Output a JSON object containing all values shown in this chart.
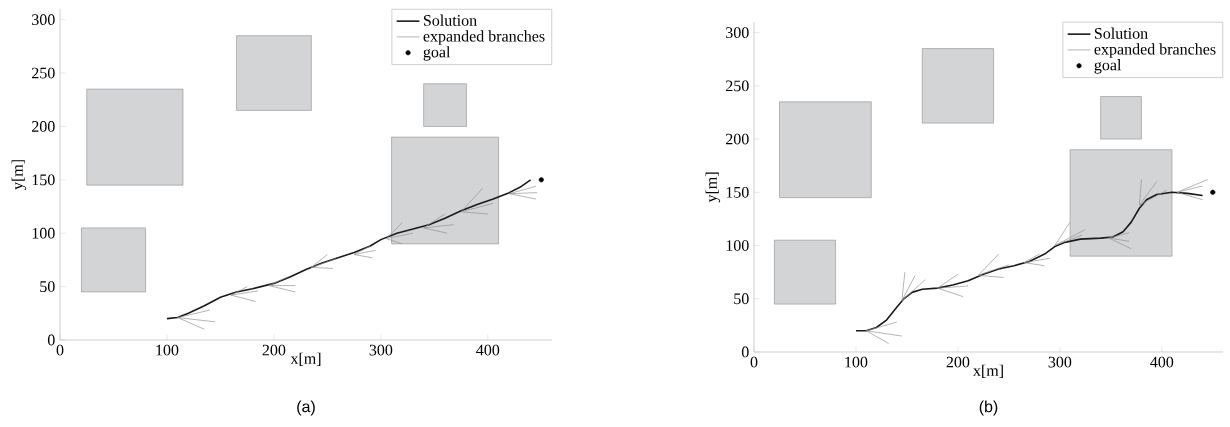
{
  "chart_data": [
    {
      "type": "line",
      "xlabel": "x[m]",
      "ylabel": "y[m]",
      "xlim": [
        0,
        460
      ],
      "ylim": [
        0,
        310
      ],
      "xticks": [
        0,
        100,
        200,
        300,
        400
      ],
      "yticks": [
        0,
        50,
        100,
        150,
        200,
        250,
        300
      ],
      "legend": "top right",
      "annotations": [
        "(a)"
      ],
      "series": [
        {
          "type": "area",
          "color": "#d3d4d6",
          "x": [
            25,
            115,
            115,
            25,
            25
          ],
          "values": [
            145,
            145,
            235,
            235,
            145
          ]
        },
        {
          "type": "area",
          "color": "#d3d4d6",
          "x": [
            20,
            80,
            80,
            20,
            20
          ],
          "values": [
            45,
            45,
            105,
            105,
            45
          ]
        },
        {
          "type": "area",
          "color": "#d3d4d6",
          "x": [
            165,
            235,
            235,
            165,
            165
          ],
          "values": [
            215,
            215,
            285,
            285,
            215
          ]
        },
        {
          "type": "area",
          "color": "#d3d4d6",
          "x": [
            340,
            380,
            380,
            340,
            340
          ],
          "values": [
            200,
            200,
            240,
            240,
            200
          ]
        },
        {
          "type": "area",
          "color": "#d3d4d6",
          "x": [
            310,
            410,
            410,
            310,
            310
          ],
          "values": [
            90,
            90,
            190,
            190,
            90
          ]
        },
        {
          "name": "Solution",
          "color": "#1a1a1a",
          "x": [
            100,
            110,
            120,
            135,
            150,
            165,
            180,
            200,
            215,
            230,
            245,
            260,
            275,
            290,
            300,
            315,
            330,
            345,
            360,
            375,
            390,
            405,
            420,
            430,
            440
          ],
          "values": [
            20,
            21,
            25,
            32,
            40,
            45,
            48,
            53,
            59,
            66,
            72,
            77,
            82,
            88,
            94,
            100,
            104,
            108,
            114,
            121,
            127,
            132,
            138,
            143,
            150
          ]
        },
        {
          "name": "expanded branches",
          "color": "#909090",
          "x": [
            110,
            140
          ],
          "values": [
            21,
            28
          ]
        },
        {
          "color": "#909090",
          "x": [
            110,
            145
          ],
          "values": [
            21,
            17
          ]
        },
        {
          "color": "#909090",
          "x": [
            110,
            135
          ],
          "values": [
            21,
            10
          ]
        },
        {
          "color": "#909090",
          "x": [
            160,
            175
          ],
          "values": [
            42,
            50
          ]
        },
        {
          "color": "#909090",
          "x": [
            160,
            185
          ],
          "values": [
            42,
            46
          ]
        },
        {
          "color": "#909090",
          "x": [
            160,
            183
          ],
          "values": [
            42,
            36
          ]
        },
        {
          "color": "#909090",
          "x": [
            195,
            215
          ],
          "values": [
            51,
            60
          ]
        },
        {
          "color": "#909090",
          "x": [
            195,
            220
          ],
          "values": [
            51,
            51
          ]
        },
        {
          "color": "#909090",
          "x": [
            195,
            220
          ],
          "values": [
            51,
            45
          ]
        },
        {
          "color": "#909090",
          "x": [
            235,
            250
          ],
          "values": [
            68,
            80
          ]
        },
        {
          "color": "#909090",
          "x": [
            235,
            258
          ],
          "values": [
            68,
            76
          ]
        },
        {
          "color": "#909090",
          "x": [
            235,
            255
          ],
          "values": [
            68,
            67
          ]
        },
        {
          "color": "#909090",
          "x": [
            275,
            290
          ],
          "values": [
            80,
            88
          ]
        },
        {
          "color": "#909090",
          "x": [
            275,
            295
          ],
          "values": [
            80,
            84
          ]
        },
        {
          "color": "#909090",
          "x": [
            275,
            292
          ],
          "values": [
            80,
            77
          ]
        },
        {
          "color": "#909090",
          "x": [
            305,
            320
          ],
          "values": [
            95,
            110
          ]
        },
        {
          "color": "#909090",
          "x": [
            305,
            330
          ],
          "values": [
            95,
            100
          ]
        },
        {
          "color": "#909090",
          "x": [
            305,
            320
          ],
          "values": [
            95,
            90
          ]
        },
        {
          "color": "#909090",
          "x": [
            340,
            360
          ],
          "values": [
            105,
            118
          ]
        },
        {
          "color": "#909090",
          "x": [
            340,
            368
          ],
          "values": [
            105,
            108
          ]
        },
        {
          "color": "#909090",
          "x": [
            340,
            362
          ],
          "values": [
            105,
            100
          ]
        },
        {
          "color": "#909090",
          "x": [
            375,
            395
          ],
          "values": [
            120,
            142
          ]
        },
        {
          "color": "#909090",
          "x": [
            375,
            405
          ],
          "values": [
            120,
            128
          ]
        },
        {
          "color": "#909090",
          "x": [
            375,
            400
          ],
          "values": [
            120,
            118
          ]
        },
        {
          "color": "#909090",
          "x": [
            420,
            445
          ],
          "values": [
            137,
            144
          ]
        },
        {
          "color": "#909090",
          "x": [
            420,
            446
          ],
          "values": [
            137,
            138
          ]
        },
        {
          "color": "#909090",
          "x": [
            420,
            445
          ],
          "values": [
            137,
            132
          ]
        },
        {
          "type": "scatter",
          "name": "goal",
          "color": "#000000",
          "x": [
            450
          ],
          "values": [
            150
          ]
        }
      ]
    },
    {
      "type": "line",
      "xlabel": "x[m]",
      "ylabel": "y[m]",
      "xlim": [
        0,
        460
      ],
      "ylim": [
        0,
        310
      ],
      "xticks": [
        0,
        100,
        200,
        300,
        400
      ],
      "yticks": [
        0,
        50,
        100,
        150,
        200,
        250,
        300
      ],
      "legend": "top right",
      "annotations": [
        "(b)"
      ],
      "series": [
        {
          "type": "area",
          "color": "#d3d4d6",
          "x": [
            25,
            115,
            115,
            25,
            25
          ],
          "values": [
            145,
            145,
            235,
            235,
            145
          ]
        },
        {
          "type": "area",
          "color": "#d3d4d6",
          "x": [
            20,
            80,
            80,
            20,
            20
          ],
          "values": [
            45,
            45,
            105,
            105,
            45
          ]
        },
        {
          "type": "area",
          "color": "#d3d4d6",
          "x": [
            165,
            235,
            235,
            165,
            165
          ],
          "values": [
            215,
            215,
            285,
            285,
            215
          ]
        },
        {
          "type": "area",
          "color": "#d3d4d6",
          "x": [
            340,
            380,
            380,
            340,
            340
          ],
          "values": [
            200,
            200,
            240,
            240,
            200
          ]
        },
        {
          "type": "area",
          "color": "#d3d4d6",
          "x": [
            310,
            410,
            410,
            310,
            310
          ],
          "values": [
            90,
            90,
            190,
            190,
            90
          ]
        },
        {
          "name": "Solution",
          "color": "#1a1a1a",
          "x": [
            100,
            110,
            120,
            130,
            140,
            147,
            155,
            165,
            180,
            195,
            210,
            225,
            240,
            255,
            270,
            285,
            295,
            305,
            320,
            340,
            352,
            362,
            370,
            378,
            385,
            395,
            410,
            425,
            440
          ],
          "values": [
            20,
            20,
            23,
            30,
            42,
            50,
            56,
            59,
            60,
            63,
            67,
            73,
            78,
            81,
            85,
            92,
            99,
            103,
            106,
            107,
            108,
            113,
            122,
            135,
            143,
            148,
            150,
            149,
            147
          ]
        },
        {
          "name": "expanded branches",
          "color": "#909090",
          "x": [
            110,
            140
          ],
          "values": [
            20,
            28
          ]
        },
        {
          "color": "#909090",
          "x": [
            110,
            145
          ],
          "values": [
            20,
            15
          ]
        },
        {
          "color": "#909090",
          "x": [
            110,
            132
          ],
          "values": [
            20,
            8
          ]
        },
        {
          "color": "#909090",
          "x": [
            145,
            148
          ],
          "values": [
            48,
            75
          ]
        },
        {
          "color": "#909090",
          "x": [
            145,
            158
          ],
          "values": [
            48,
            72
          ]
        },
        {
          "color": "#909090",
          "x": [
            145,
            168
          ],
          "values": [
            48,
            68
          ]
        },
        {
          "color": "#909090",
          "x": [
            180,
            200
          ],
          "values": [
            60,
            73
          ]
        },
        {
          "color": "#909090",
          "x": [
            180,
            210
          ],
          "values": [
            60,
            62
          ]
        },
        {
          "color": "#909090",
          "x": [
            180,
            205
          ],
          "values": [
            60,
            52
          ]
        },
        {
          "color": "#909090",
          "x": [
            220,
            240
          ],
          "values": [
            72,
            92
          ]
        },
        {
          "color": "#909090",
          "x": [
            220,
            250
          ],
          "values": [
            72,
            82
          ]
        },
        {
          "color": "#909090",
          "x": [
            220,
            245
          ],
          "values": [
            72,
            70
          ]
        },
        {
          "color": "#909090",
          "x": [
            265,
            280
          ],
          "values": [
            84,
            92
          ]
        },
        {
          "color": "#909090",
          "x": [
            265,
            290
          ],
          "values": [
            84,
            88
          ]
        },
        {
          "color": "#909090",
          "x": [
            265,
            285
          ],
          "values": [
            84,
            81
          ]
        },
        {
          "color": "#909090",
          "x": [
            295,
            310
          ],
          "values": [
            100,
            122
          ]
        },
        {
          "color": "#909090",
          "x": [
            295,
            325
          ],
          "values": [
            100,
            115
          ]
        },
        {
          "color": "#909090",
          "x": [
            295,
            322
          ],
          "values": [
            100,
            110
          ]
        },
        {
          "color": "#909090",
          "x": [
            348,
            368
          ],
          "values": [
            107,
            112
          ]
        },
        {
          "color": "#909090",
          "x": [
            348,
            368
          ],
          "values": [
            107,
            104
          ]
        },
        {
          "color": "#909090",
          "x": [
            348,
            370
          ],
          "values": [
            107,
            97
          ]
        },
        {
          "color": "#909090",
          "x": [
            378,
            380
          ],
          "values": [
            138,
            162
          ]
        },
        {
          "color": "#909090",
          "x": [
            378,
            395
          ],
          "values": [
            138,
            160
          ]
        },
        {
          "color": "#909090",
          "x": [
            378,
            405
          ],
          "values": [
            138,
            152
          ]
        },
        {
          "color": "#909090",
          "x": [
            415,
            445
          ],
          "values": [
            150,
            162
          ]
        },
        {
          "color": "#909090",
          "x": [
            415,
            440
          ],
          "values": [
            150,
            156
          ]
        },
        {
          "color": "#909090",
          "x": [
            415,
            440
          ],
          "values": [
            150,
            143
          ]
        },
        {
          "type": "scatter",
          "name": "goal",
          "color": "#000000",
          "x": [
            450
          ],
          "values": [
            150
          ]
        }
      ]
    }
  ]
}
